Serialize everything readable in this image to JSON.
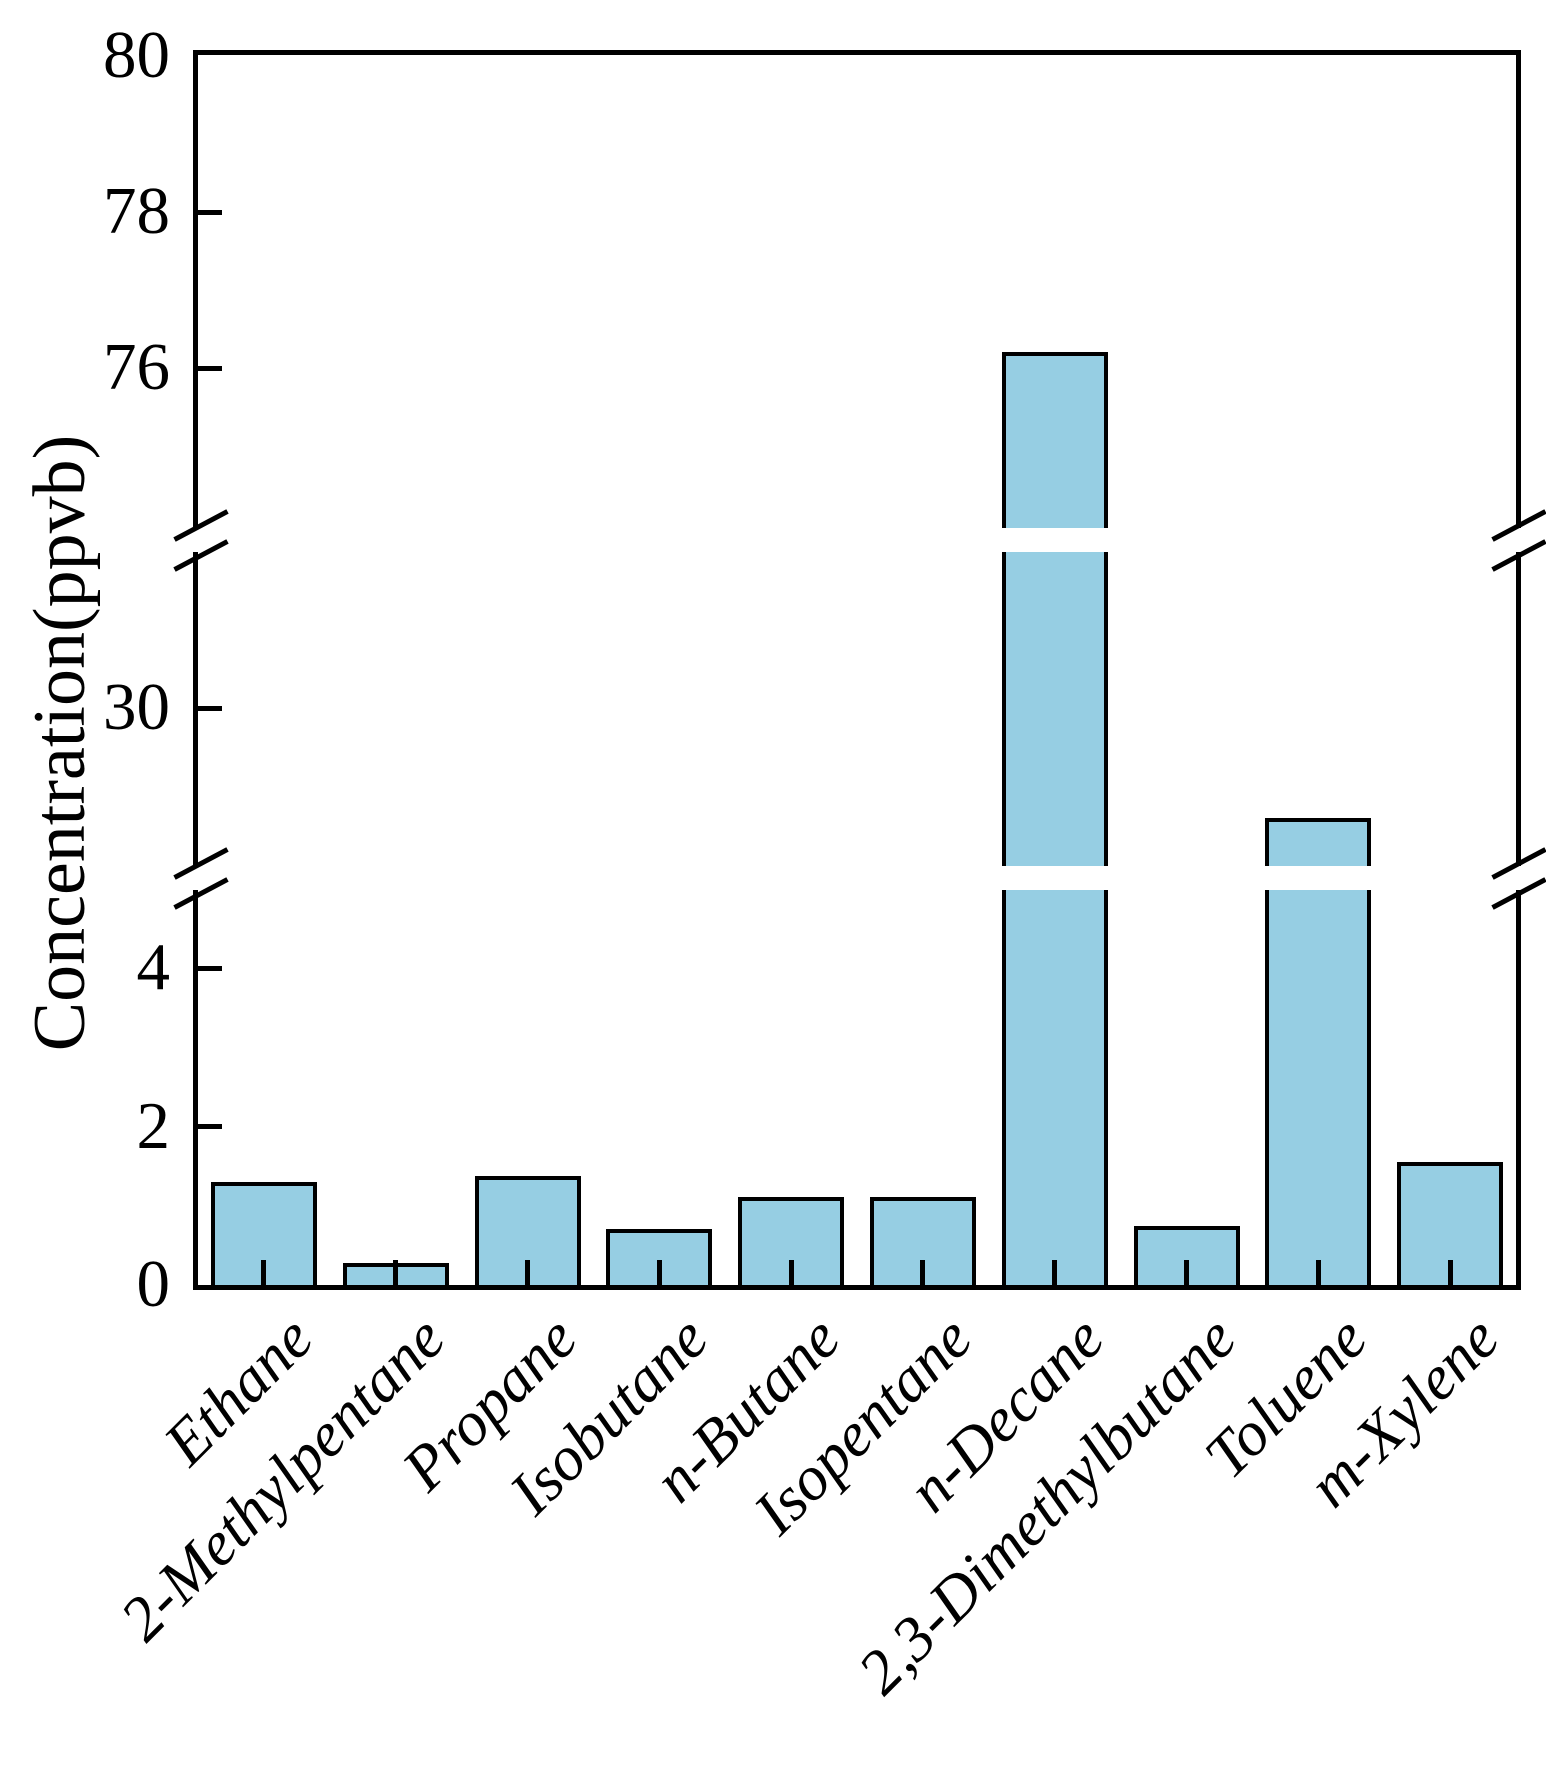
{
  "figure": {
    "background": "#ffffff",
    "y_axis_title": "Concentration(ppvb)"
  },
  "chart_data": {
    "type": "bar",
    "title": "",
    "xlabel": "",
    "ylabel": "Concentration(ppvb)",
    "categories": [
      "Ethane",
      "2-Methylpentane",
      "Propane",
      "Isobutane",
      "n-Butane",
      "Isopentane",
      "n-Decane",
      "2,3-Dimethylbutane",
      "Toluene",
      "m-Xylene"
    ],
    "values": [
      1.3,
      0.28,
      1.38,
      0.71,
      1.11,
      1.11,
      76.2,
      0.74,
      23.0,
      1.55
    ],
    "unit": "ppvb",
    "bar_color": "#96CEE3",
    "bar_edge_color": "#000000",
    "grid": false,
    "legend": null,
    "axis_break": {
      "breaks_count": 2,
      "segments": [
        {
          "range": [
            0,
            5.4
          ],
          "ticks": [
            0,
            2,
            4
          ]
        },
        {
          "range": [
            20,
            40
          ],
          "ticks": [
            30
          ]
        },
        {
          "range": [
            74,
            80
          ],
          "ticks": [
            76,
            78,
            80
          ]
        }
      ]
    },
    "yticks": [
      {
        "v": 0,
        "label": "0"
      },
      {
        "v": 2,
        "label": "2"
      },
      {
        "v": 4,
        "label": "4"
      },
      {
        "v": 30,
        "label": "30"
      },
      {
        "v": 76,
        "label": "76"
      },
      {
        "v": 78,
        "label": "78"
      },
      {
        "v": 80,
        "label": "80"
      }
    ]
  }
}
